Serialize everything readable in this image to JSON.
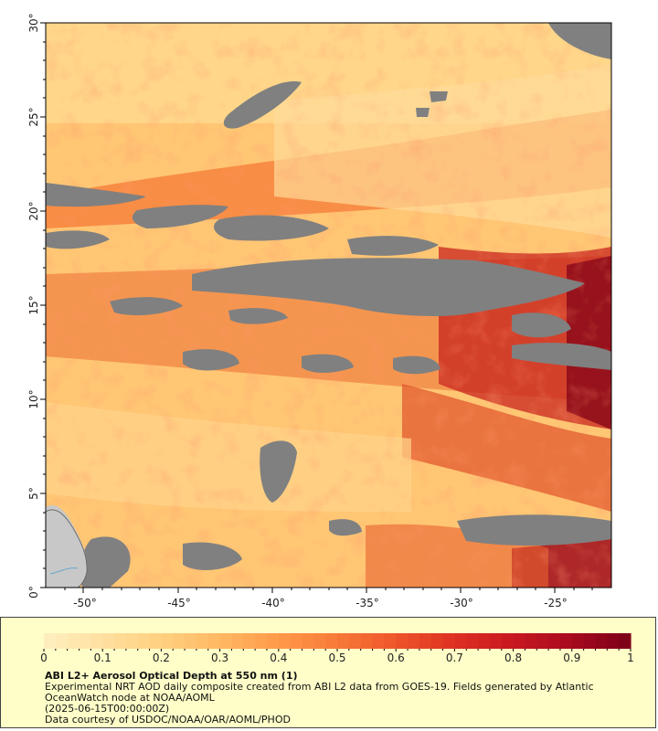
{
  "map": {
    "lat_ticks": [
      "0°",
      "5°",
      "10°",
      "15°",
      "20°",
      "25°",
      "30°"
    ],
    "lon_ticks": [
      "-50°",
      "-45°",
      "-40°",
      "-35°",
      "-30°",
      "-25°"
    ],
    "lat_range": [
      0,
      30
    ],
    "lon_range": [
      -52,
      -22
    ]
  },
  "legend": {
    "colorbar_ticks": [
      "0",
      "0.1",
      "0.2",
      "0.3",
      "0.4",
      "0.5",
      "0.6",
      "0.7",
      "0.8",
      "0.9",
      "1"
    ],
    "colorbar_range": [
      0,
      1
    ],
    "colorbar_colors": [
      "#fff0c0",
      "#ffe0a0",
      "#ffd080",
      "#ffb862",
      "#ff9a4a",
      "#f77a38",
      "#ee552a",
      "#dd3022",
      "#c81820",
      "#a80a1e",
      "#7a0018"
    ],
    "title": "ABI L2+ Aerosol Optical Depth at 550 nm (1)",
    "description_line1": "Experimental NRT AOD daily composite created from ABI L2 data from GOES-19. Fields generated by Atlantic",
    "description_line2": "OceanWatch node at NOAA/AOML",
    "date": "(2025-06-15T00:00:00Z)",
    "credit": "Data courtesy of USDOC/NOAA/OAR/AOML/PHOD"
  },
  "colors": {
    "no_data": "#808080",
    "land": "#c8c8c8",
    "panel_background": "#fffec8"
  }
}
